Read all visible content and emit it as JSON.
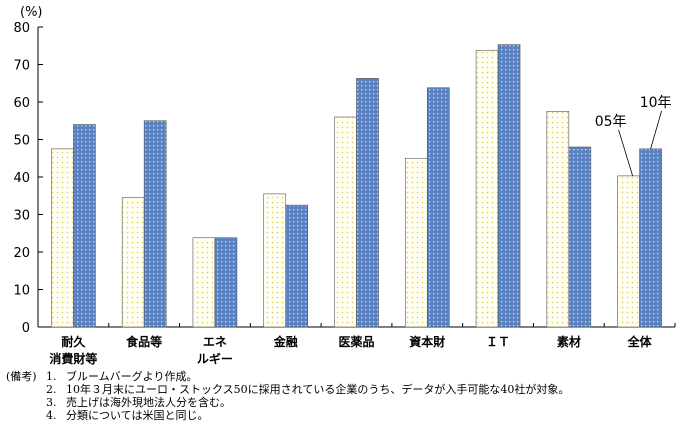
{
  "chart_data": {
    "type": "bar",
    "unit_label": "(%)",
    "ylim": [
      0,
      80
    ],
    "yticks": [
      0,
      10,
      20,
      30,
      40,
      50,
      60,
      70,
      80
    ],
    "grid": false,
    "categories": [
      [
        "耐久",
        "消費財等"
      ],
      [
        "食品等"
      ],
      [
        "エネ",
        "ルギー"
      ],
      [
        "金融"
      ],
      [
        "医薬品"
      ],
      [
        "資本財"
      ],
      [
        "ＩＴ"
      ],
      [
        "素材"
      ],
      [
        "全体"
      ]
    ],
    "series": [
      {
        "name": "05年",
        "pattern": "dotted-yellow",
        "values": [
          47.5,
          34.5,
          23.8,
          35.5,
          56.0,
          45.0,
          73.8,
          57.5,
          40.3
        ]
      },
      {
        "name": "10年",
        "pattern": "blue-cross",
        "values": [
          54.0,
          55.0,
          23.8,
          32.5,
          66.3,
          63.8,
          75.3,
          48.0,
          47.5
        ]
      }
    ],
    "annotations": [
      {
        "text": "05年",
        "series": 0,
        "category": 8
      },
      {
        "text": "10年",
        "series": 1,
        "category": 8
      }
    ],
    "colors": {
      "series0_bg": "#fffef2",
      "series0_dot": "#e6c84a",
      "series1_bg": "#5b83c4",
      "series1_dot": "#c9d9f0",
      "axis": "#000000"
    }
  },
  "notes": {
    "lead": "(備考)",
    "items": [
      {
        "num": "1.",
        "text": "ブルームバーグより作成。"
      },
      {
        "num": "2.",
        "text": "10年３月末にユーロ・ストックス50に採用されている企業のうち、データが入手可能な40社が対象。"
      },
      {
        "num": "3.",
        "text": "売上げは海外現地法人分を含む。"
      },
      {
        "num": "4.",
        "text": "分類については米国と同じ。"
      }
    ]
  }
}
